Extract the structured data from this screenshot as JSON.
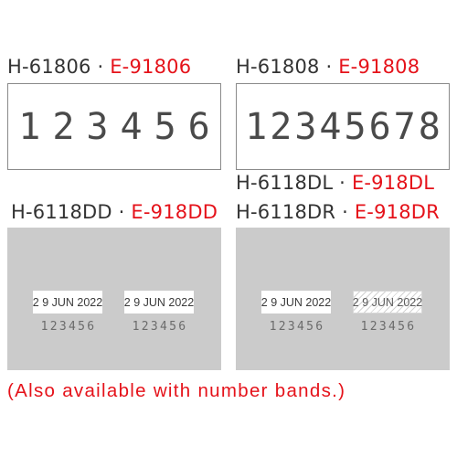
{
  "models": [
    {
      "code": "H-61806",
      "sep": " · ",
      "alt": "E-91806",
      "digits": "123456"
    },
    {
      "code": "H-61808",
      "sep": " · ",
      "alt": "E-91808",
      "digits": "12345678"
    },
    {
      "code": "H-6118DD",
      "sep": " · ",
      "alt": "E-918DD"
    },
    {
      "code": "H-6118DL",
      "sep": " · ",
      "alt": "E-918DL"
    },
    {
      "code": "H-6118DR",
      "sep": " · ",
      "alt": "E-918DR"
    }
  ],
  "stamps": {
    "date": "2 9 JUN 2022",
    "number": "123456"
  },
  "note": "(Also available with number bands.)",
  "colors": {
    "accent": "#e5121a",
    "panel": "#cbcbcb",
    "text": "#333333"
  }
}
